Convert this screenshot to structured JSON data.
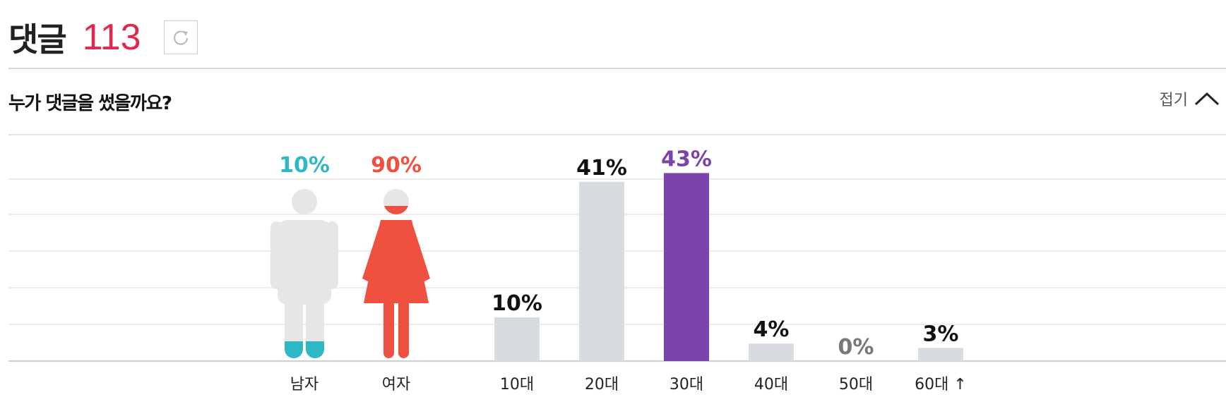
{
  "header": {
    "title": "댓글",
    "count": "113",
    "refresh_icon": "refresh-icon"
  },
  "subheader": {
    "question": "누가 댓글을 썼을까요?",
    "fold_label": "접기",
    "fold_icon": "chevron-up-icon"
  },
  "colors": {
    "male": "#2eb7c5",
    "female": "#f05040",
    "highlight": "#7b44ad",
    "bar": "#d8dce1",
    "figure": "#e6e6e6"
  },
  "chart_data": [
    {
      "type": "pictograph",
      "categories": [
        "남자",
        "여자"
      ],
      "values": [
        10,
        90
      ],
      "value_labels": [
        "10%",
        "90%"
      ],
      "colors": [
        "#2eb7c5",
        "#f05040"
      ]
    },
    {
      "type": "bar",
      "categories": [
        "10대",
        "20대",
        "30대",
        "40대",
        "50대",
        "60대 ↑"
      ],
      "values": [
        10,
        41,
        43,
        4,
        0,
        3
      ],
      "value_labels": [
        "10%",
        "41%",
        "43%",
        "4%",
        "0%",
        "3%"
      ],
      "highlight": "30대"
    }
  ]
}
